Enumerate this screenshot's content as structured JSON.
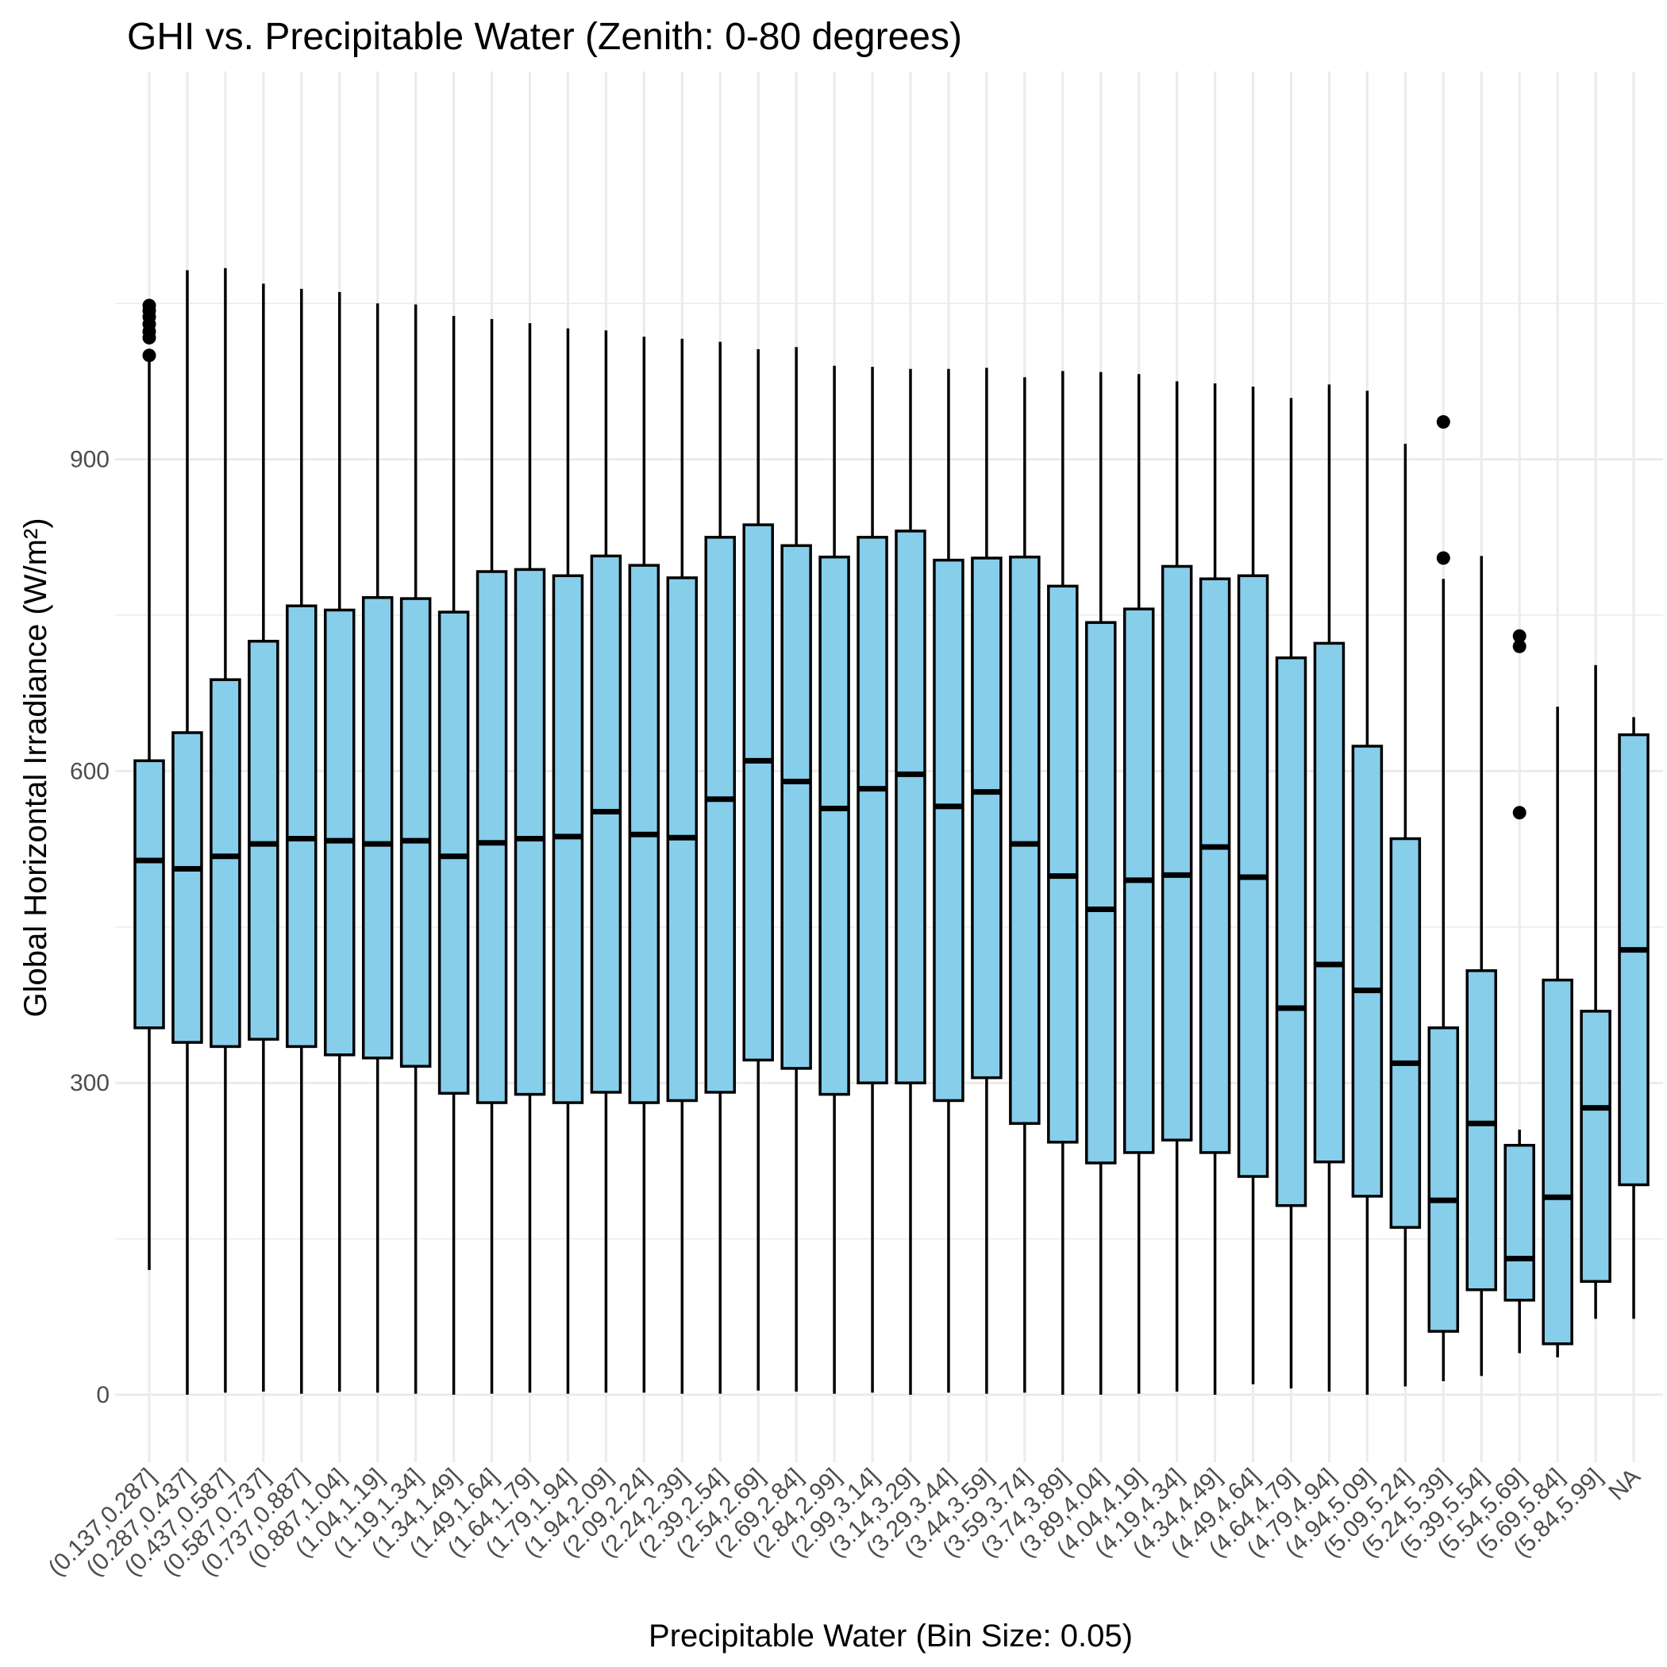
{
  "chart_data": {
    "type": "boxplot",
    "title": "GHI vs. Precipitable Water (Zenith: 0-80 degrees)",
    "xlabel": "Precipitable Water (Bin Size: 0.05)",
    "ylabel": "Global Horizontal Irradiance (W/m²)",
    "ylim": [
      -55,
      1130
    ],
    "yticks": [
      0,
      300,
      600,
      900
    ],
    "grid": true,
    "colors": {
      "box_fill": "#87CEEB",
      "stroke": "#000000",
      "grid": "#ebebeb",
      "tick_text": "#4d4d4d"
    },
    "categories": [
      "(0.137,0.287]",
      "(0.287,0.437]",
      "(0.437,0.587]",
      "(0.587,0.737]",
      "(0.737,0.887]",
      "(0.887,1.04]",
      "(1.04,1.19]",
      "(1.19,1.34]",
      "(1.34,1.49]",
      "(1.49,1.64]",
      "(1.64,1.79]",
      "(1.79,1.94]",
      "(1.94,2.09]",
      "(2.09,2.24]",
      "(2.24,2.39]",
      "(2.39,2.54]",
      "(2.54,2.69]",
      "(2.69,2.84]",
      "(2.84,2.99]",
      "(2.99,3.14]",
      "(3.14,3.29]",
      "(3.29,3.44]",
      "(3.44,3.59]",
      "(3.59,3.74]",
      "(3.74,3.89]",
      "(3.89,4.04]",
      "(4.04,4.19]",
      "(4.19,4.34]",
      "(4.34,4.49]",
      "(4.49,4.64]",
      "(4.64,4.79]",
      "(4.79,4.94]",
      "(4.94,5.09]",
      "(5.09,5.24]",
      "(5.24,5.39]",
      "(5.39,5.54]",
      "(5.54,5.69]",
      "(5.69,5.84]",
      "(5.84,5.99]",
      "NA"
    ],
    "boxes": [
      {
        "min": 120,
        "q1": 353,
        "median": 514,
        "q3": 610,
        "max": 1000,
        "outliers": [
          1000,
          1017,
          1023,
          1030,
          1037,
          1043,
          1048
        ]
      },
      {
        "min": 0,
        "q1": 339,
        "median": 506,
        "q3": 637,
        "max": 1082,
        "outliers": []
      },
      {
        "min": 2,
        "q1": 335,
        "median": 518,
        "q3": 688,
        "max": 1084,
        "outliers": []
      },
      {
        "min": 3,
        "q1": 342,
        "median": 530,
        "q3": 725,
        "max": 1069,
        "outliers": []
      },
      {
        "min": 1,
        "q1": 335,
        "median": 535,
        "q3": 759,
        "max": 1064,
        "outliers": []
      },
      {
        "min": 3,
        "q1": 327,
        "median": 533,
        "q3": 755,
        "max": 1061,
        "outliers": []
      },
      {
        "min": 2,
        "q1": 324,
        "median": 530,
        "q3": 767,
        "max": 1050,
        "outliers": []
      },
      {
        "min": 1,
        "q1": 316,
        "median": 533,
        "q3": 766,
        "max": 1049,
        "outliers": []
      },
      {
        "min": 0,
        "q1": 290,
        "median": 518,
        "q3": 753,
        "max": 1038,
        "outliers": []
      },
      {
        "min": 1,
        "q1": 281,
        "median": 531,
        "q3": 792,
        "max": 1035,
        "outliers": []
      },
      {
        "min": 2,
        "q1": 289,
        "median": 535,
        "q3": 794,
        "max": 1031,
        "outliers": []
      },
      {
        "min": 1,
        "q1": 281,
        "median": 537,
        "q3": 788,
        "max": 1026,
        "outliers": []
      },
      {
        "min": 2,
        "q1": 291,
        "median": 561,
        "q3": 807,
        "max": 1024,
        "outliers": []
      },
      {
        "min": 2,
        "q1": 281,
        "median": 539,
        "q3": 798,
        "max": 1018,
        "outliers": []
      },
      {
        "min": 1,
        "q1": 283,
        "median": 536,
        "q3": 786,
        "max": 1016,
        "outliers": []
      },
      {
        "min": 1,
        "q1": 291,
        "median": 573,
        "q3": 825,
        "max": 1013,
        "outliers": []
      },
      {
        "min": 4,
        "q1": 322,
        "median": 610,
        "q3": 837,
        "max": 1006,
        "outliers": []
      },
      {
        "min": 3,
        "q1": 314,
        "median": 590,
        "q3": 817,
        "max": 1008,
        "outliers": []
      },
      {
        "min": 1,
        "q1": 289,
        "median": 564,
        "q3": 806,
        "max": 990,
        "outliers": []
      },
      {
        "min": 2,
        "q1": 300,
        "median": 583,
        "q3": 825,
        "max": 989,
        "outliers": []
      },
      {
        "min": 0,
        "q1": 300,
        "median": 597,
        "q3": 831,
        "max": 987,
        "outliers": []
      },
      {
        "min": 2,
        "q1": 283,
        "median": 566,
        "q3": 803,
        "max": 987,
        "outliers": []
      },
      {
        "min": 1,
        "q1": 305,
        "median": 580,
        "q3": 805,
        "max": 988,
        "outliers": []
      },
      {
        "min": 2,
        "q1": 261,
        "median": 530,
        "q3": 806,
        "max": 979,
        "outliers": []
      },
      {
        "min": 0,
        "q1": 243,
        "median": 499,
        "q3": 778,
        "max": 985,
        "outliers": []
      },
      {
        "min": 0,
        "q1": 223,
        "median": 467,
        "q3": 743,
        "max": 984,
        "outliers": []
      },
      {
        "min": 1,
        "q1": 233,
        "median": 495,
        "q3": 756,
        "max": 982,
        "outliers": []
      },
      {
        "min": 3,
        "q1": 245,
        "median": 500,
        "q3": 797,
        "max": 975,
        "outliers": []
      },
      {
        "min": 0,
        "q1": 233,
        "median": 527,
        "q3": 785,
        "max": 973,
        "outliers": []
      },
      {
        "min": 10,
        "q1": 210,
        "median": 498,
        "q3": 788,
        "max": 970,
        "outliers": []
      },
      {
        "min": 6,
        "q1": 182,
        "median": 372,
        "q3": 709,
        "max": 959,
        "outliers": []
      },
      {
        "min": 3,
        "q1": 224,
        "median": 414,
        "q3": 723,
        "max": 972,
        "outliers": []
      },
      {
        "min": 0,
        "q1": 191,
        "median": 389,
        "q3": 624,
        "max": 966,
        "outliers": []
      },
      {
        "min": 8,
        "q1": 161,
        "median": 319,
        "q3": 535,
        "max": 915,
        "outliers": []
      },
      {
        "min": 13,
        "q1": 61,
        "median": 187,
        "q3": 353,
        "max": 785,
        "outliers": [
          805,
          936
        ]
      },
      {
        "min": 18,
        "q1": 101,
        "median": 261,
        "q3": 408,
        "max": 807,
        "outliers": []
      },
      {
        "min": 40,
        "q1": 91,
        "median": 131,
        "q3": 240,
        "max": 255,
        "outliers": [
          560,
          720,
          730
        ]
      },
      {
        "min": 36,
        "q1": 49,
        "median": 190,
        "q3": 399,
        "max": 662,
        "outliers": []
      },
      {
        "min": 73,
        "q1": 109,
        "median": 276,
        "q3": 369,
        "max": 702,
        "outliers": []
      },
      {
        "min": 73,
        "q1": 202,
        "median": 428,
        "q3": 635,
        "max": 652,
        "outliers": []
      }
    ]
  }
}
